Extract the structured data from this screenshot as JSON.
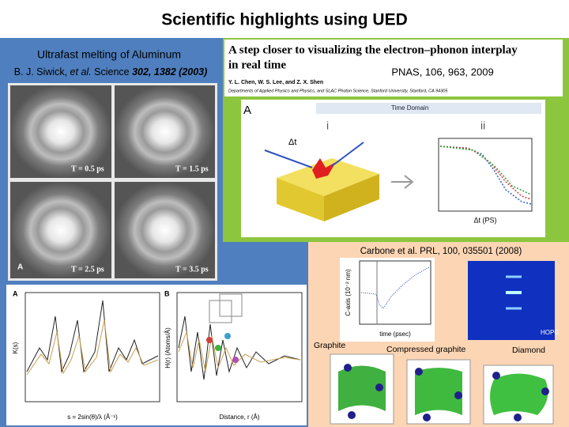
{
  "title": "Scientific highlights using UED",
  "left": {
    "heading": "Ultrafast melting of Aluminum",
    "citation": {
      "authors": "B. J. Siwick, ",
      "etal": "et al.",
      "journal": " Science ",
      "ref": "302, 1382 (2003)"
    },
    "panels": [
      "T = 0.5 ps",
      "T = 1.5 ps",
      "T = 2.5 ps",
      "T = 3.5 ps"
    ],
    "panel_letter": "A",
    "plot_letters": [
      "A",
      "B"
    ],
    "plot_xlabels": [
      "s = 2sin(θ)/λ  (Å⁻¹)",
      "Distance, r (Å)"
    ],
    "plot_ylabels": [
      "K(s)",
      "H(r) (Atoms/Å)"
    ]
  },
  "pnas": {
    "title_line1": "A step closer to visualizing the electron–phonon interplay",
    "title_line2": "in real time",
    "authors": "Y. L. Chen, W. S. Lee, and Z. X. Shen",
    "affiliation": "Departments of Applied Physics and Physics, and SLAC Photon Science, Stanford University, Stanford, CA 94305",
    "citation": "PNAS, 106, 963, 2009",
    "figure_letter": "A",
    "figure_title": "Time Domain",
    "sub_i": "i",
    "sub_ii": "ii",
    "xlabel": "Δt (PS)",
    "dt": "Δt"
  },
  "carbone": {
    "citation": "Carbone et al. PRL, 100, 035501 (2008)",
    "xlabel": "time (psec)",
    "ylabel": "C-axis (10⁻² nm)",
    "hopg": "HOPG",
    "structures": [
      "Graphite",
      "Compressed graphite",
      "Diamond"
    ]
  }
}
